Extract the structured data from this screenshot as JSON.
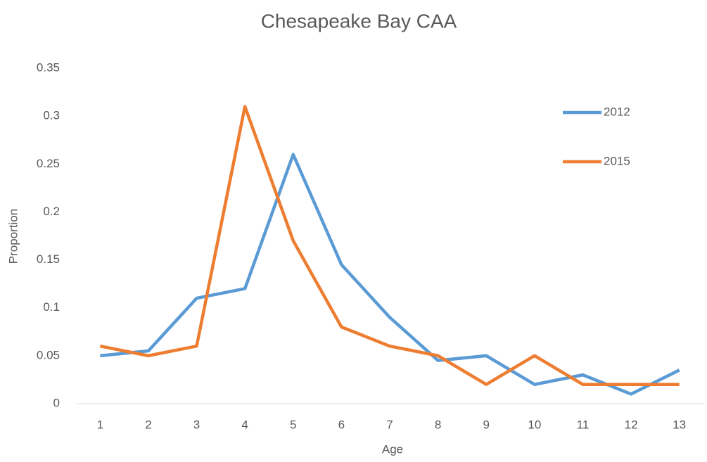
{
  "chart_data": {
    "type": "line",
    "title": "Chesapeake Bay CAA",
    "x_label": "Age",
    "y_label": "Proportion",
    "categories": [
      1,
      2,
      3,
      4,
      5,
      6,
      7,
      8,
      9,
      10,
      11,
      12,
      13
    ],
    "series": [
      {
        "name": "2012",
        "color": "#5b9bd5",
        "values": [
          0.05,
          0.055,
          0.11,
          0.12,
          0.26,
          0.145,
          0.09,
          0.045,
          0.05,
          0.02,
          0.03,
          0.01,
          0.035
        ]
      },
      {
        "name": "2015",
        "color": "#ed7d31",
        "values": [
          0.06,
          0.05,
          0.06,
          0.31,
          0.17,
          0.08,
          0.06,
          0.05,
          0.02,
          0.05,
          0.02,
          0.02,
          0.02
        ]
      }
    ],
    "ylim": [
      0,
      0.35
    ],
    "yticks": [
      0,
      0.05,
      0.1,
      0.15,
      0.2,
      0.25,
      0.3,
      0.35
    ],
    "grid": false,
    "legend": "right"
  }
}
